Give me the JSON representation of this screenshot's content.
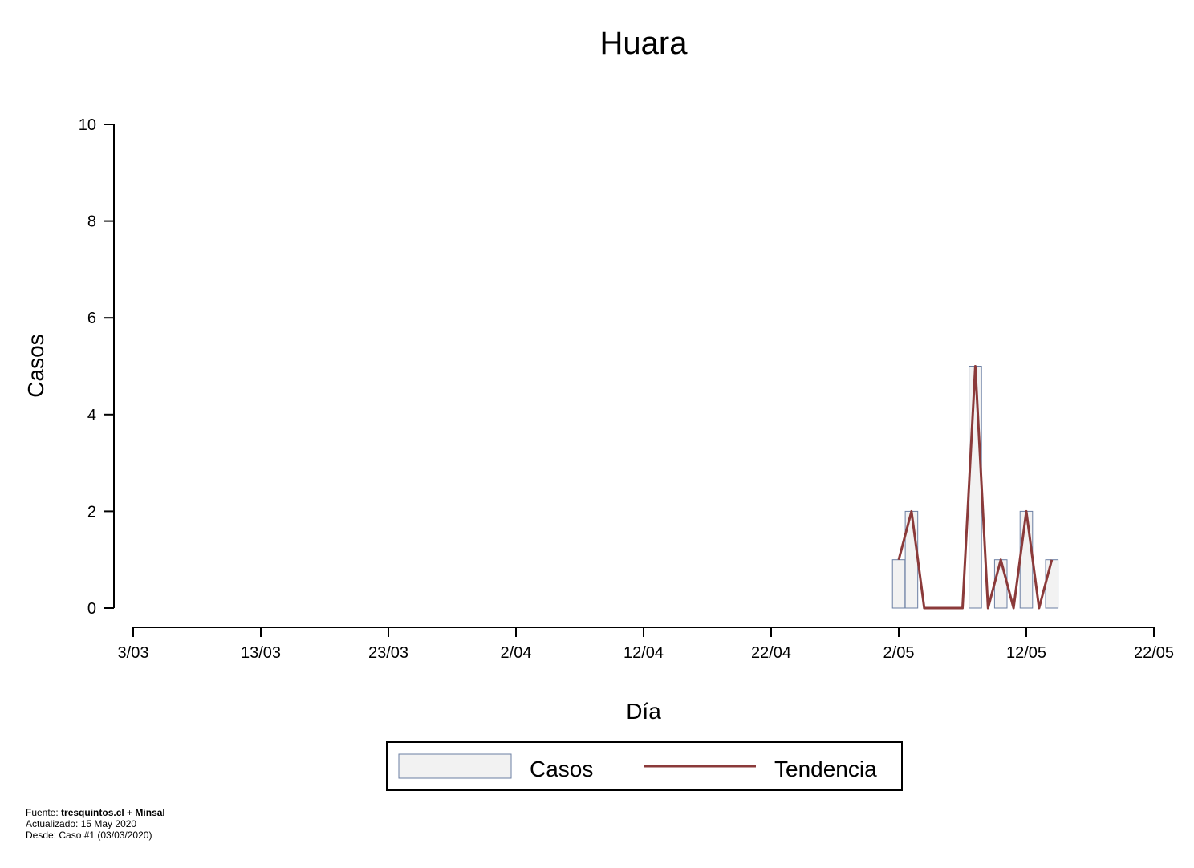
{
  "chart_data": {
    "type": "bar",
    "title": "Huara",
    "xlabel": "Día",
    "ylabel": "Casos",
    "ylim": [
      0,
      10
    ],
    "y_ticks": [
      0,
      2,
      4,
      6,
      8,
      10
    ],
    "x_range_days": [
      0,
      80
    ],
    "x_ticks": [
      {
        "day": 0,
        "label": "3/03"
      },
      {
        "day": 10,
        "label": "13/03"
      },
      {
        "day": 20,
        "label": "23/03"
      },
      {
        "day": 30,
        "label": "2/04"
      },
      {
        "day": 40,
        "label": "12/04"
      },
      {
        "day": 50,
        "label": "22/04"
      },
      {
        "day": 60,
        "label": "2/05"
      },
      {
        "day": 70,
        "label": "12/05"
      },
      {
        "day": 80,
        "label": "22/05"
      }
    ],
    "series": [
      {
        "name": "Casos",
        "kind": "bar",
        "color": "#f2f2f2",
        "edge_color": "#6b7fa3",
        "points": [
          {
            "day": 60,
            "value": 1
          },
          {
            "day": 61,
            "value": 2
          },
          {
            "day": 66,
            "value": 5
          },
          {
            "day": 68,
            "value": 1
          },
          {
            "day": 70,
            "value": 2
          },
          {
            "day": 72,
            "value": 1
          }
        ]
      },
      {
        "name": "Tendencia",
        "kind": "line",
        "color": "#8b3a3a",
        "points": [
          {
            "day": 60,
            "value": 1
          },
          {
            "day": 61,
            "value": 2
          },
          {
            "day": 62,
            "value": 0
          },
          {
            "day": 63,
            "value": 0
          },
          {
            "day": 64,
            "value": 0
          },
          {
            "day": 65,
            "value": 0
          },
          {
            "day": 66,
            "value": 5
          },
          {
            "day": 67,
            "value": 0
          },
          {
            "day": 68,
            "value": 1
          },
          {
            "day": 69,
            "value": 0
          },
          {
            "day": 70,
            "value": 2
          },
          {
            "day": 71,
            "value": 0
          },
          {
            "day": 72,
            "value": 1
          }
        ]
      }
    ],
    "legend": {
      "position": "bottom-center",
      "items": [
        "Casos",
        "Tendencia"
      ]
    }
  },
  "footer": {
    "source_prefix": "Fuente: ",
    "source_site": "tresquintos.cl",
    "source_join": " + ",
    "source_org": "Minsal",
    "updated": "Actualizado: 15 May 2020",
    "since": "Desde: Caso #1  (03/03/2020)"
  }
}
